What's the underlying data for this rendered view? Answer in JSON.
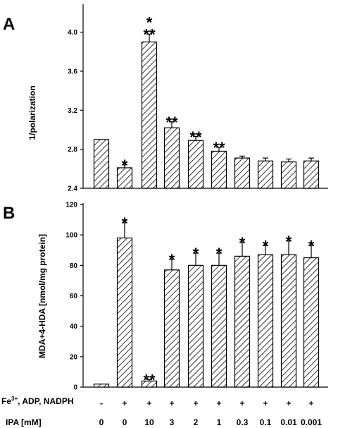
{
  "chart_data": [
    {
      "type": "bar",
      "panel_label": "A",
      "ylabel": "1/polarization",
      "ylim": [
        2.4,
        4.2
      ],
      "yticks": [
        "2.4",
        "2.8",
        "3.2",
        "3.6",
        "4.0"
      ],
      "values": [
        2.9,
        2.61,
        3.9,
        3.02,
        2.89,
        2.78,
        2.71,
        2.68,
        2.67,
        2.68
      ],
      "errors": [
        0.0,
        0.03,
        0.08,
        0.06,
        0.04,
        0.04,
        0.02,
        0.03,
        0.03,
        0.03
      ],
      "significance": [
        "",
        "*",
        "*\n**",
        "**",
        "**",
        "**",
        "",
        "",
        "",
        ""
      ]
    },
    {
      "type": "bar",
      "panel_label": "B",
      "ylabel": "MDA+4-HDA [nmol/mg protein]",
      "ylim": [
        0,
        120
      ],
      "yticks": [
        "0",
        "20",
        "40",
        "60",
        "80",
        "100",
        "120"
      ],
      "values": [
        2,
        98,
        4,
        77,
        80,
        80,
        86,
        87,
        87,
        85
      ],
      "errors": [
        0,
        10,
        1,
        7,
        8,
        8,
        9,
        6,
        9,
        8
      ],
      "significance": [
        "",
        "*",
        "**",
        "*",
        "*",
        "*",
        "*",
        "*",
        "*",
        "*"
      ]
    }
  ],
  "conditions": {
    "row1_label": "Fe",
    "row1_sup": "3+",
    "row1_rest": ", ADP, NADPH",
    "row1_values": [
      "-",
      "+",
      "+",
      "+",
      "+",
      "+",
      "+",
      "+",
      "+",
      "+"
    ],
    "row2_label": "IPA [mM]",
    "row2_values": [
      "0",
      "0",
      "10",
      "3",
      "2",
      "1",
      "0.3",
      "0.1",
      "0.01",
      "0.001"
    ]
  }
}
